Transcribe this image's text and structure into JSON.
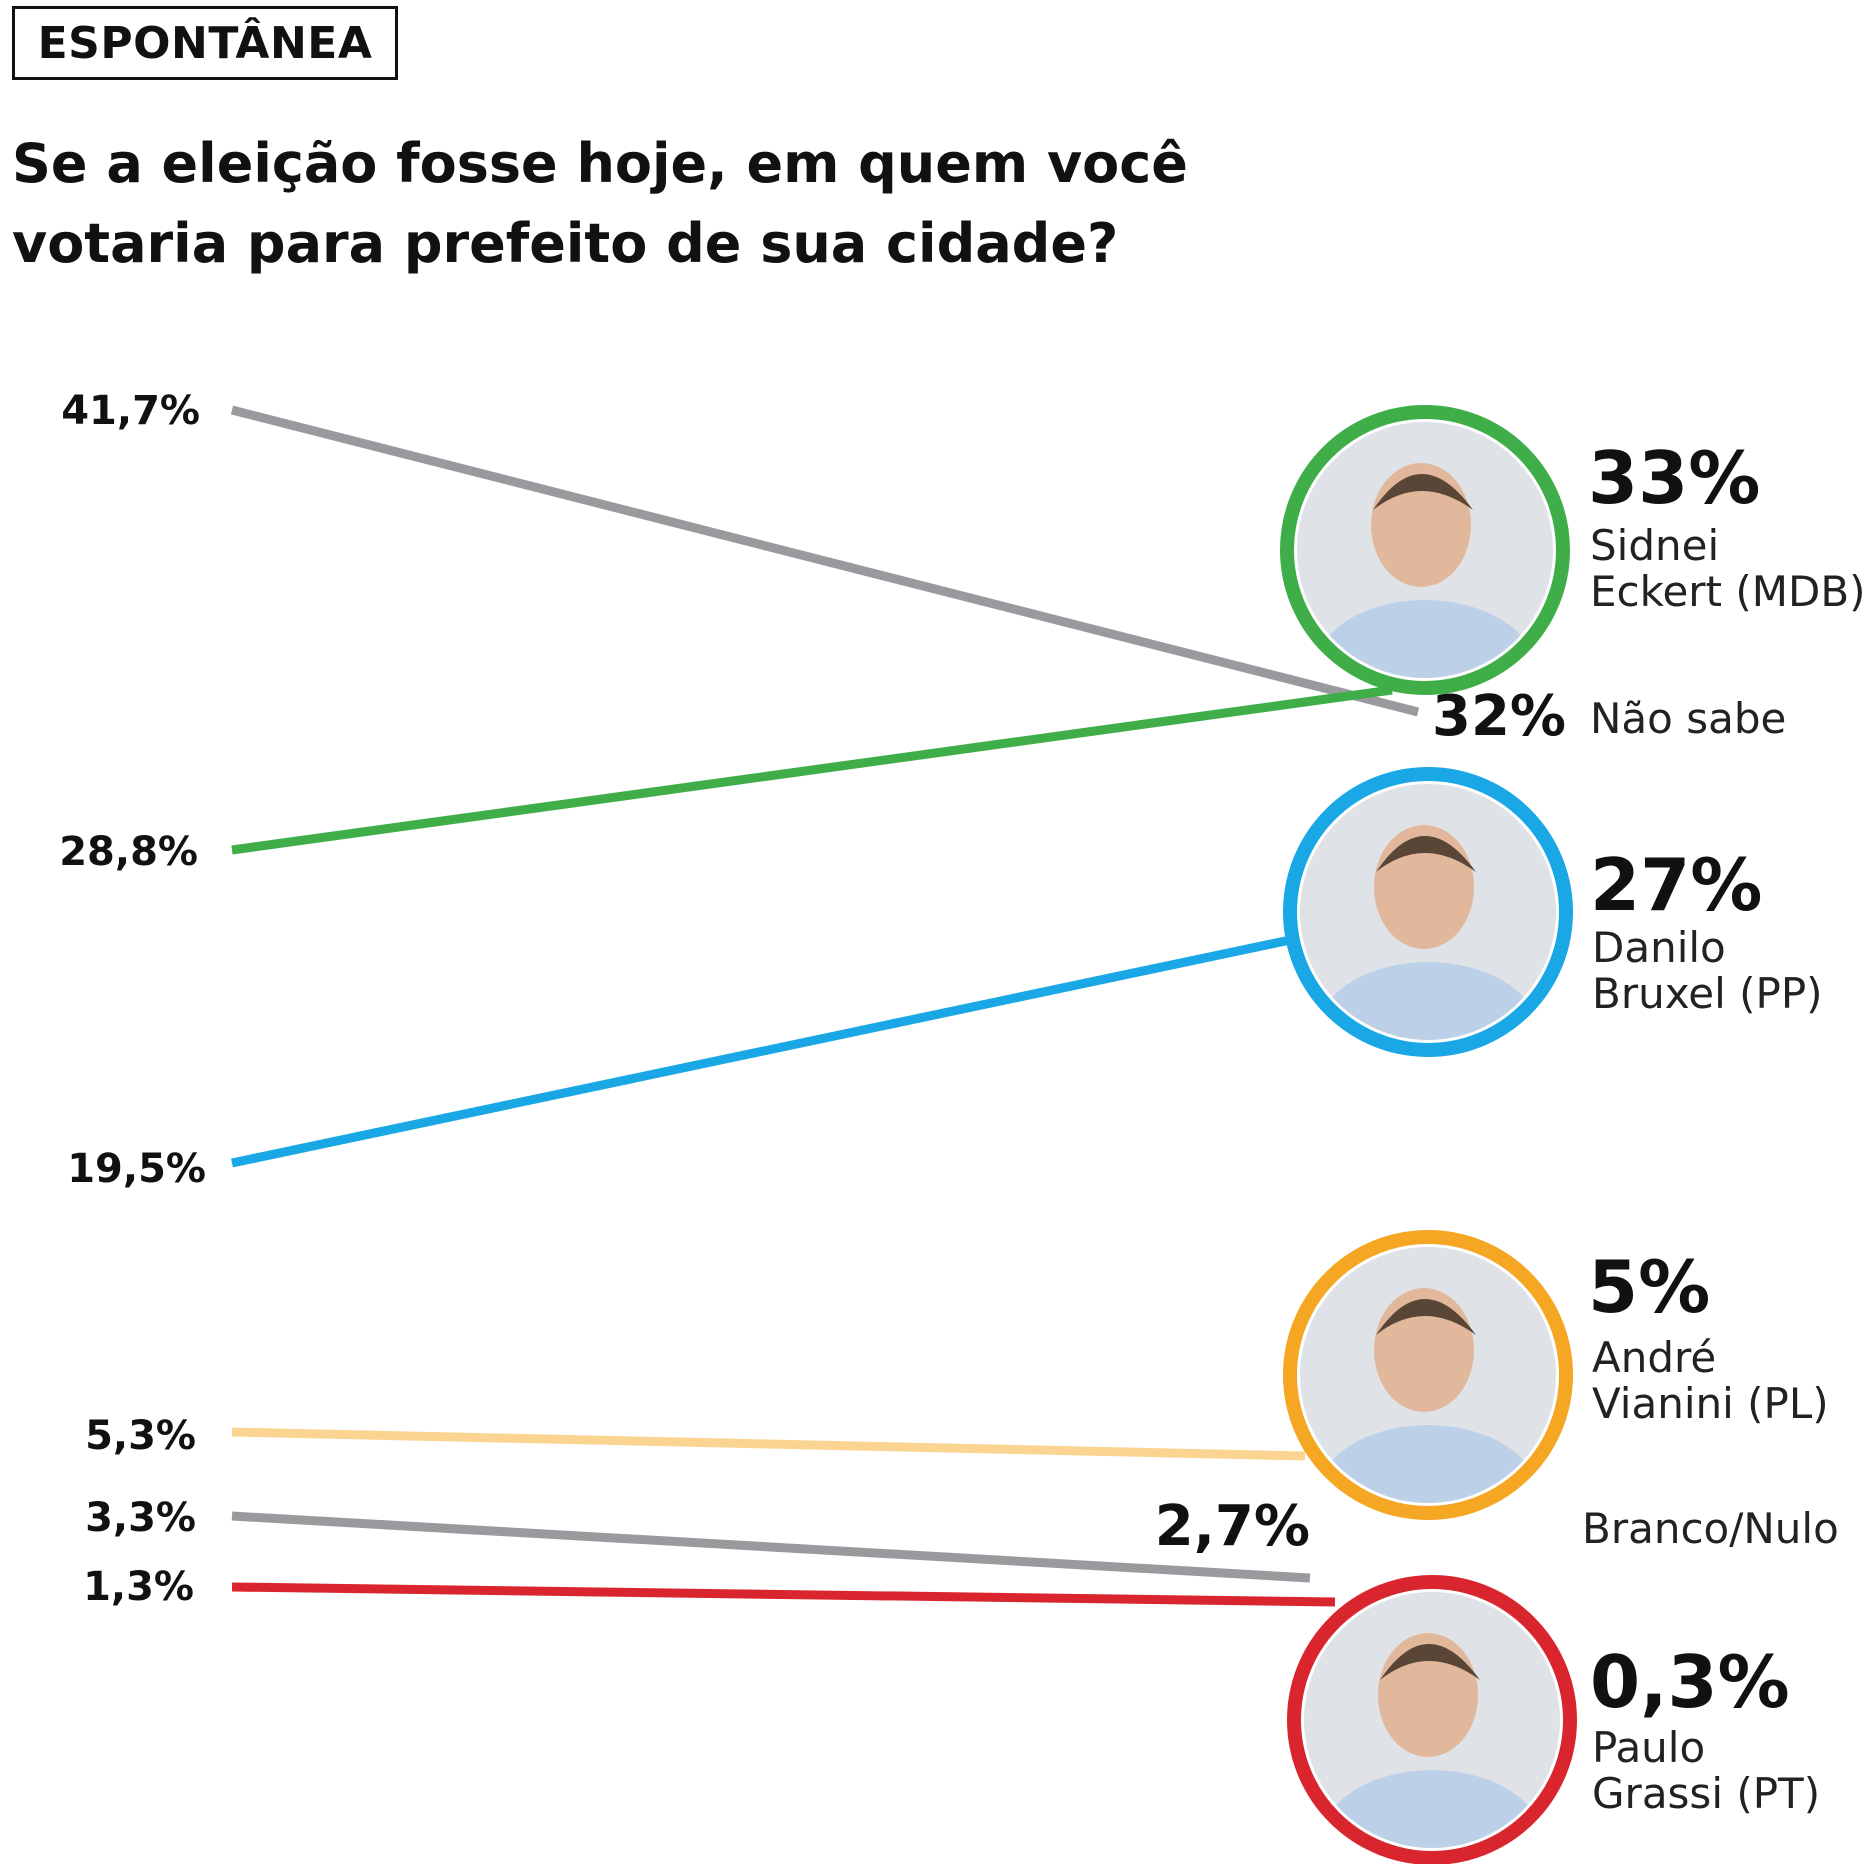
{
  "header": {
    "tag": "ESPONTÂNEA",
    "title_line1": "Se a eleição fosse hoje, em quem você",
    "title_line2": "votaria para prefeito de sua cidade?"
  },
  "chart_data": {
    "type": "line",
    "title": "Se a eleição fosse hoje, em quem você votaria para prefeito de sua cidade?",
    "series": [
      {
        "key": "nao_sabe",
        "start": 41.7,
        "end": 32,
        "start_label": "41,7%",
        "end_label": "32%",
        "name_lines": [
          "Não sabe"
        ],
        "color": "#9a9a9e",
        "avatar": false
      },
      {
        "key": "sidnei",
        "start": 28.8,
        "end": 33,
        "start_label": "28,8%",
        "end_label": "33%",
        "name_lines": [
          "Sidnei",
          "Eckert (MDB)"
        ],
        "color": "#3fae49",
        "avatar": true,
        "avatar_icon": "candidate-portrait-icon"
      },
      {
        "key": "danilo",
        "start": 19.5,
        "end": 27,
        "start_label": "19,5%",
        "end_label": "27%",
        "name_lines": [
          "Danilo",
          "Bruxel (PP)"
        ],
        "color": "#1aa7e5",
        "avatar": true,
        "avatar_icon": "candidate-portrait-icon"
      },
      {
        "key": "andre",
        "start": 5.3,
        "end": 5,
        "start_label": "5,3%",
        "end_label": "5%",
        "name_lines": [
          "André",
          "Vianini (PL)"
        ],
        "color": "#f5a623",
        "line_color": "#fbd491",
        "avatar": true,
        "avatar_icon": "candidate-portrait-icon"
      },
      {
        "key": "branco_nulo",
        "start": 3.3,
        "end": 2.7,
        "start_label": "3,3%",
        "end_label": "2,7%",
        "name_lines": [
          "Branco/Nulo"
        ],
        "color": "#9a9a9e",
        "avatar": false
      },
      {
        "key": "paulo",
        "start": 1.3,
        "end": 0.3,
        "start_label": "1,3%",
        "end_label": "0,3%",
        "name_lines": [
          "Paulo",
          "Grassi (PT)"
        ],
        "color": "#d9262e",
        "avatar": true,
        "avatar_icon": "candidate-portrait-icon"
      }
    ]
  }
}
